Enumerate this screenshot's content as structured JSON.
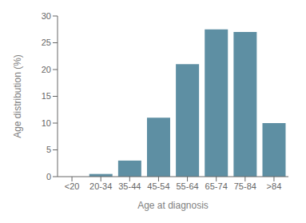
{
  "chart_data": {
    "type": "bar",
    "categories": [
      "<20",
      "20-34",
      "35-44",
      "45-54",
      "55-64",
      "65-74",
      "75-84",
      ">84"
    ],
    "values": [
      0.0,
      0.5,
      3.0,
      11.0,
      21.0,
      27.5,
      27.0,
      10.0
    ],
    "color": "#5e8fa3",
    "xlabel": "Age at diagnosis",
    "ylabel": "Age distribution (%)",
    "ylim": [
      0,
      30
    ],
    "yticks": [
      0,
      5,
      10,
      15,
      20,
      25,
      30
    ],
    "grid": false
  }
}
